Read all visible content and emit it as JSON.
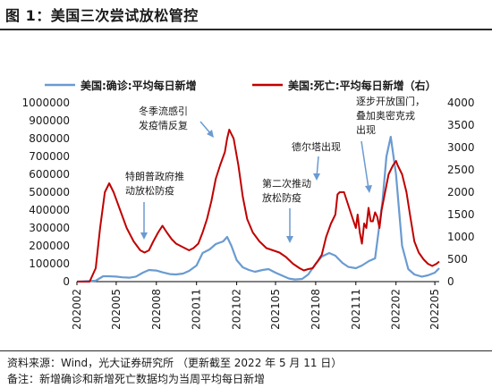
{
  "header": {
    "title": "图 1：美国三次尝试放松管控"
  },
  "footer": {
    "source": "资料来源：Wind，光大证券研究所    （更新截至 2022 年 5 月 11 日）",
    "note": "备注：新增确诊和新增死亡数据均为当周平均每日新增"
  },
  "colors": {
    "cases": "#6a9bd1",
    "deaths": "#c00000"
  },
  "chart_data": {
    "type": "line",
    "x_ticks": [
      "202002",
      "202005",
      "202008",
      "202011",
      "202102",
      "202105",
      "202108",
      "202111",
      "202202",
      "202205"
    ],
    "left_axis": {
      "ticks": [
        0,
        100000,
        200000,
        300000,
        400000,
        500000,
        600000,
        700000,
        800000,
        900000,
        1000000
      ],
      "ylim": [
        0,
        1000000
      ]
    },
    "right_axis": {
      "ticks": [
        0,
        500,
        1000,
        1500,
        2000,
        2500,
        3000,
        3500,
        4000
      ],
      "ylim": [
        0,
        4000
      ]
    },
    "grid": false,
    "legend_position": "top",
    "series": [
      {
        "name": "美国:确诊:平均每日新增",
        "axis": "left",
        "x": [
          "2020-02-01",
          "2020-03-15",
          "2020-04-01",
          "2020-04-15",
          "2020-05-01",
          "2020-05-15",
          "2020-06-01",
          "2020-06-15",
          "2020-07-01",
          "2020-07-15",
          "2020-08-01",
          "2020-08-15",
          "2020-09-01",
          "2020-09-15",
          "2020-10-01",
          "2020-10-15",
          "2020-11-01",
          "2020-11-15",
          "2020-12-01",
          "2020-12-15",
          "2021-01-01",
          "2021-01-10",
          "2021-01-20",
          "2021-02-01",
          "2021-02-15",
          "2021-03-01",
          "2021-03-15",
          "2021-04-01",
          "2021-04-15",
          "2021-05-01",
          "2021-05-15",
          "2021-06-01",
          "2021-06-15",
          "2021-07-01",
          "2021-07-15",
          "2021-08-01",
          "2021-08-15",
          "2021-09-01",
          "2021-09-15",
          "2021-10-01",
          "2021-10-15",
          "2021-11-01",
          "2021-11-15",
          "2021-12-01",
          "2021-12-15",
          "2022-01-01",
          "2022-01-10",
          "2022-01-20",
          "2022-02-01",
          "2022-02-15",
          "2022-03-01",
          "2022-03-15",
          "2022-04-01",
          "2022-04-15",
          "2022-05-01",
          "2022-05-11"
        ],
        "values": [
          0,
          5000,
          30000,
          30000,
          28000,
          24000,
          22000,
          28000,
          50000,
          65000,
          62000,
          52000,
          42000,
          40000,
          45000,
          60000,
          90000,
          160000,
          180000,
          210000,
          225000,
          250000,
          200000,
          120000,
          80000,
          65000,
          55000,
          65000,
          70000,
          50000,
          35000,
          17000,
          12000,
          15000,
          40000,
          100000,
          140000,
          160000,
          145000,
          105000,
          82000,
          75000,
          90000,
          115000,
          130000,
          450000,
          700000,
          810000,
          600000,
          200000,
          70000,
          40000,
          28000,
          35000,
          50000,
          75000
        ]
      },
      {
        "name": "美国:死亡:平均每日新增（右）",
        "axis": "right",
        "x": [
          "2020-02-01",
          "2020-03-01",
          "2020-03-15",
          "2020-03-25",
          "2020-04-05",
          "2020-04-15",
          "2020-04-25",
          "2020-05-10",
          "2020-05-25",
          "2020-06-10",
          "2020-06-25",
          "2020-07-05",
          "2020-07-15",
          "2020-07-25",
          "2020-08-05",
          "2020-08-15",
          "2020-08-25",
          "2020-09-05",
          "2020-09-15",
          "2020-09-25",
          "2020-10-05",
          "2020-10-15",
          "2020-10-25",
          "2020-11-05",
          "2020-11-15",
          "2020-11-25",
          "2020-12-05",
          "2020-12-15",
          "2020-12-25",
          "2021-01-05",
          "2021-01-10",
          "2021-01-15",
          "2021-01-20",
          "2021-01-25",
          "2021-02-05",
          "2021-02-15",
          "2021-02-25",
          "2021-03-10",
          "2021-03-25",
          "2021-04-10",
          "2021-04-25",
          "2021-05-10",
          "2021-05-25",
          "2021-06-10",
          "2021-06-25",
          "2021-07-05",
          "2021-07-15",
          "2021-07-25",
          "2021-08-05",
          "2021-08-15",
          "2021-08-25",
          "2021-09-05",
          "2021-09-15",
          "2021-09-20",
          "2021-09-25",
          "2021-10-05",
          "2021-10-15",
          "2021-10-25",
          "2021-11-01",
          "2021-11-05",
          "2021-11-10",
          "2021-11-15",
          "2021-11-20",
          "2021-11-25",
          "2021-11-30",
          "2021-12-05",
          "2021-12-10",
          "2021-12-15",
          "2021-12-20",
          "2021-12-25",
          "2021-12-30",
          "2022-01-05",
          "2022-01-15",
          "2022-01-25",
          "2022-02-01",
          "2022-02-05",
          "2022-02-15",
          "2022-02-25",
          "2022-03-05",
          "2022-03-15",
          "2022-03-25",
          "2022-04-05",
          "2022-04-15",
          "2022-04-25",
          "2022-05-05",
          "2022-05-11"
        ],
        "values": [
          0,
          0,
          300,
          1200,
          2000,
          2200,
          2000,
          1600,
          1200,
          900,
          700,
          650,
          700,
          900,
          1100,
          1250,
          1100,
          950,
          850,
          800,
          750,
          700,
          750,
          850,
          1100,
          1400,
          1800,
          2300,
          2600,
          2900,
          3200,
          3400,
          3300,
          3200,
          2600,
          1900,
          1400,
          1100,
          900,
          750,
          700,
          650,
          550,
          400,
          300,
          250,
          280,
          300,
          450,
          600,
          1000,
          1300,
          1500,
          1950,
          2000,
          2000,
          1700,
          1400,
          1200,
          1500,
          1100,
          850,
          1300,
          1200,
          1650,
          1350,
          1350,
          1550,
          1450,
          1200,
          1600,
          1900,
          2400,
          2600,
          2700,
          2600,
          2400,
          2000,
          1500,
          900,
          650,
          500,
          400,
          350,
          400,
          450
        ]
      }
    ],
    "annotations": [
      {
        "text": "特朗普政府推动放松防疫",
        "x": "2020-06-01"
      },
      {
        "text": "冬季流感引发疫情反复",
        "x": "2021-01-01"
      },
      {
        "text": "第二次推动放松防疫",
        "x": "2021-06-25"
      },
      {
        "text": "德尔塔出现",
        "x": "2021-08-15"
      },
      {
        "text": "逐步开放国门，叠加奥密克戎出现",
        "x": "2021-11-15"
      }
    ]
  }
}
